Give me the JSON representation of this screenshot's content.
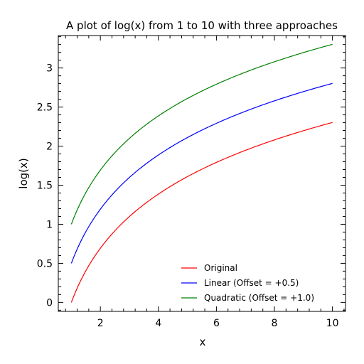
{
  "chart_data": {
    "type": "line",
    "title": "A plot of log(x) from 1 to 10 with three approaches",
    "xlabel": "x",
    "ylabel": "log(x)",
    "xlim": [
      0.55,
      10.45
    ],
    "ylim": [
      -0.115,
      3.415
    ],
    "xticks": [
      2,
      4,
      6,
      8,
      10
    ],
    "yticks": [
      0,
      0.5,
      1,
      1.5,
      2,
      2.5,
      3
    ],
    "xtick_labels": [
      "2",
      "4",
      "6",
      "8",
      "10"
    ],
    "ytick_labels": [
      "0",
      "0.5",
      "1",
      "1.5",
      "2",
      "2.5",
      "3"
    ],
    "grid": false,
    "legend_position": "lower-right",
    "series": [
      {
        "name": "Original",
        "color": "#ff0000",
        "offset": 0,
        "x": [
          1,
          1.5,
          2,
          2.5,
          3,
          3.5,
          4,
          4.5,
          5,
          5.5,
          6,
          6.5,
          7,
          7.5,
          8,
          8.5,
          9,
          9.5,
          10
        ],
        "values": [
          0,
          0.405,
          0.693,
          0.916,
          1.099,
          1.253,
          1.386,
          1.504,
          1.609,
          1.705,
          1.792,
          1.872,
          1.946,
          2.015,
          2.079,
          2.14,
          2.197,
          2.251,
          2.303
        ]
      },
      {
        "name": "Linear (Offset = +0.5)",
        "color": "#0000ff",
        "offset": 0.5,
        "x": [
          1,
          1.5,
          2,
          2.5,
          3,
          3.5,
          4,
          4.5,
          5,
          5.5,
          6,
          6.5,
          7,
          7.5,
          8,
          8.5,
          9,
          9.5,
          10
        ],
        "values": [
          0.5,
          0.905,
          1.193,
          1.416,
          1.599,
          1.753,
          1.886,
          2.004,
          2.109,
          2.205,
          2.292,
          2.372,
          2.446,
          2.515,
          2.579,
          2.64,
          2.697,
          2.751,
          2.803
        ]
      },
      {
        "name": "Quadratic (Offset = +1.0)",
        "color": "#008000",
        "offset": 1.0,
        "x": [
          1,
          1.5,
          2,
          2.5,
          3,
          3.5,
          4,
          4.5,
          5,
          5.5,
          6,
          6.5,
          7,
          7.5,
          8,
          8.5,
          9,
          9.5,
          10
        ],
        "values": [
          1,
          1.405,
          1.693,
          1.916,
          2.099,
          2.253,
          2.386,
          2.504,
          2.609,
          2.705,
          2.792,
          2.872,
          2.946,
          3.015,
          3.079,
          3.14,
          3.197,
          3.251,
          3.303
        ]
      }
    ]
  }
}
